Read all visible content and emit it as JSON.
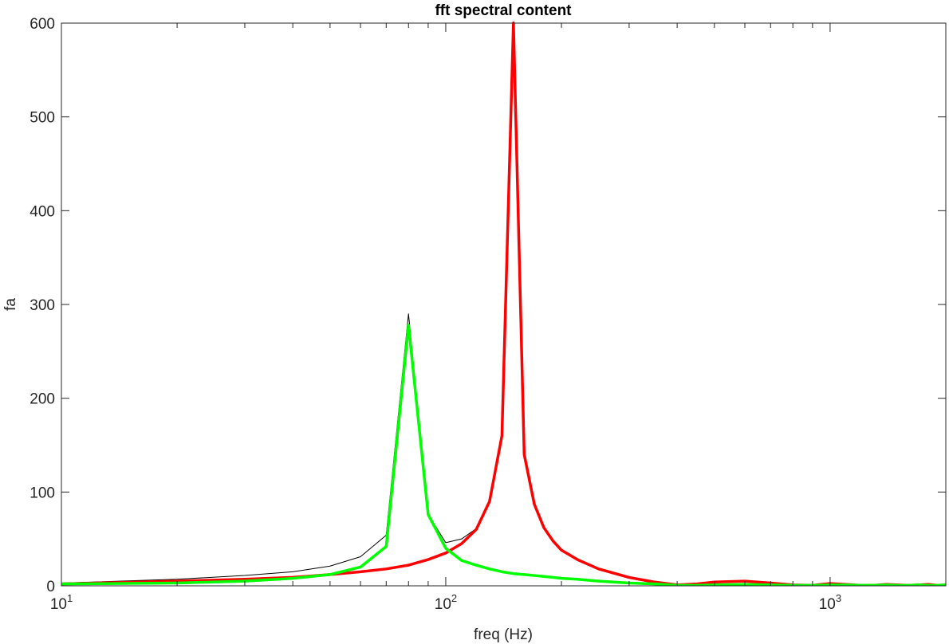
{
  "chart_data": {
    "type": "line",
    "title": "fft spectral content",
    "xlabel": "freq (Hz)",
    "ylabel": "fa",
    "xscale": "log",
    "xlim": [
      10,
      2000
    ],
    "ylim": [
      0,
      600
    ],
    "x_ticks": [
      {
        "base": "10",
        "exp": "1",
        "value": 10
      },
      {
        "base": "10",
        "exp": "2",
        "value": 100
      },
      {
        "base": "10",
        "exp": "3",
        "value": 1000
      }
    ],
    "y_ticks": [
      "0",
      "100",
      "200",
      "300",
      "400",
      "500",
      "600"
    ],
    "grid": false,
    "legend": "none",
    "series": [
      {
        "color": "#000000",
        "width": 1,
        "x": [
          10,
          20,
          30,
          40,
          50,
          60,
          70,
          80,
          90,
          100,
          110,
          120,
          130,
          140,
          150,
          160,
          170,
          180,
          190,
          200,
          220,
          250,
          300,
          350,
          400,
          450,
          500,
          600,
          700,
          800,
          900,
          1000,
          1100,
          1200,
          1300,
          1400,
          1500,
          1600,
          1700,
          1800,
          1900,
          2000
        ],
        "y": [
          3,
          7,
          11,
          15,
          21,
          31,
          54,
          290,
          76,
          46,
          50,
          61,
          90,
          160,
          605,
          140,
          87,
          62,
          48,
          38,
          27,
          17,
          8,
          3,
          0.5,
          1,
          2,
          2,
          2,
          1,
          0.5,
          1.5,
          1,
          0.5,
          0.5,
          1,
          0.5,
          0.5,
          1,
          0.5,
          0.5,
          1
        ]
      },
      {
        "color": "#ff0000",
        "width": 3.5,
        "x": [
          10,
          20,
          30,
          40,
          50,
          60,
          70,
          80,
          90,
          100,
          110,
          120,
          130,
          140,
          150,
          160,
          170,
          180,
          190,
          200,
          220,
          250,
          300,
          350,
          400,
          450,
          500,
          600,
          700,
          800,
          900,
          1000,
          1100,
          1200,
          1300,
          1400,
          1500,
          1600,
          1700,
          1800,
          1900,
          2000
        ],
        "y": [
          2,
          5,
          7,
          9,
          12,
          15,
          18,
          22,
          28,
          35,
          45,
          60,
          90,
          160,
          600,
          140,
          87,
          62,
          48,
          38,
          28,
          18,
          9,
          4,
          1,
          2,
          4,
          5,
          3,
          1,
          0.5,
          2.5,
          1.5,
          0.5,
          0.5,
          1.5,
          1,
          0.5,
          1,
          1.5,
          0.5,
          1
        ]
      },
      {
        "color": "#00ff00",
        "width": 3.5,
        "x": [
          10,
          20,
          30,
          40,
          50,
          60,
          70,
          80,
          90,
          100,
          110,
          120,
          130,
          140,
          150,
          160,
          170,
          180,
          190,
          200,
          220,
          250,
          300,
          350,
          400,
          450,
          500,
          600,
          700,
          800,
          900,
          1000,
          1100,
          1200,
          1300,
          1400,
          1500,
          1600,
          1700,
          1800,
          1900,
          2000
        ],
        "y": [
          2,
          3,
          5,
          8,
          12,
          20,
          42,
          278,
          76,
          40,
          27,
          22,
          18,
          15,
          13,
          12,
          11,
          10,
          9,
          8,
          7,
          5,
          3,
          2,
          0.5,
          0.5,
          1,
          1.5,
          1,
          0.5,
          0.5,
          1,
          1,
          0.5,
          0.5,
          1,
          0.5,
          0.5,
          1,
          0.5,
          0.5,
          1
        ]
      }
    ]
  }
}
